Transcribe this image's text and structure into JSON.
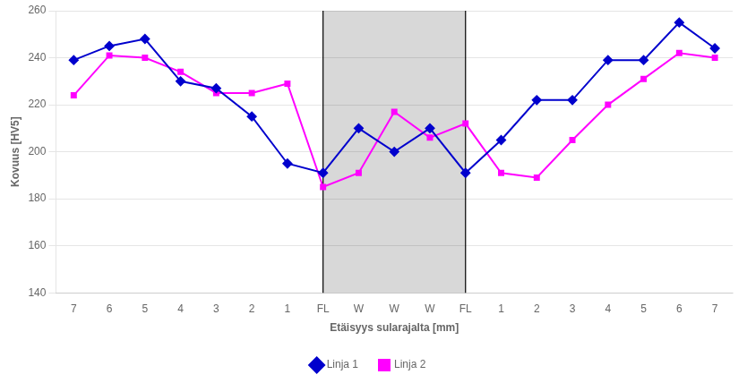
{
  "chart_data": {
    "type": "line",
    "categories": [
      "7",
      "6",
      "5",
      "4",
      "3",
      "2",
      "1",
      "FL",
      "W",
      "W",
      "W",
      "FL",
      "1",
      "2",
      "3",
      "4",
      "5",
      "6",
      "7"
    ],
    "series": [
      {
        "name": "Linja 1",
        "color": "#0000CD",
        "marker": "diamond",
        "values": [
          239,
          245,
          248,
          230,
          227,
          215,
          195,
          191,
          210,
          200,
          210,
          191,
          205,
          222,
          222,
          239,
          239,
          255,
          244
        ]
      },
      {
        "name": "Linja 2",
        "color": "#FF00FF",
        "marker": "square",
        "values": [
          224,
          241,
          240,
          234,
          225,
          225,
          229,
          185,
          191,
          217,
          206,
          212,
          191,
          189,
          205,
          220,
          231,
          242,
          240
        ]
      }
    ],
    "xlabel": "Etäisyys sularajalta [mm]",
    "ylabel": "Kovuus [HV5]",
    "ylim": [
      140,
      260
    ],
    "yticks": [
      140,
      160,
      180,
      200,
      220,
      240,
      260
    ],
    "grid": true,
    "legend": "bottom"
  }
}
